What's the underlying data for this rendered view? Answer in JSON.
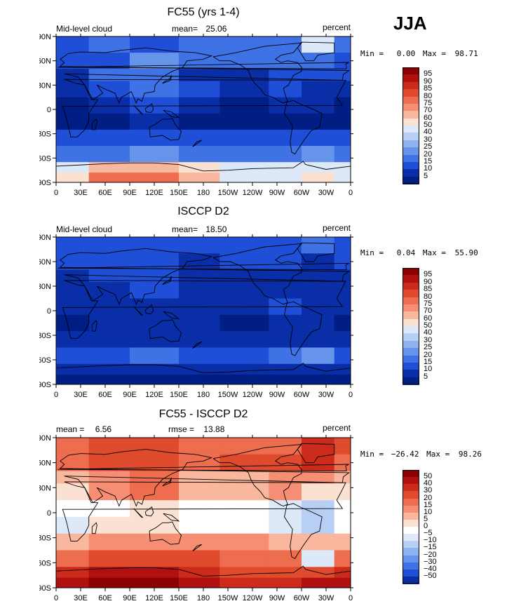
{
  "season": "JJA",
  "chart_data": [
    {
      "type": "heatmap",
      "title": "FC55 (yrs 1-4)",
      "variable": "Mid-level cloud",
      "stat1_label": "mean=",
      "stat1_value": "25.06",
      "units": "percent",
      "min_label": "Min =",
      "min_value": "0.00",
      "max_label": "Max =",
      "max_value": "98.71",
      "xticks": [
        "0",
        "30E",
        "60E",
        "90E",
        "120E",
        "150E",
        "180",
        "150W",
        "120W",
        "90W",
        "60W",
        "30W",
        "0"
      ],
      "yticks": [
        "90N",
        "60N",
        "30N",
        "0",
        "30S",
        "60S",
        "90S"
      ],
      "xlim": [
        0,
        360
      ],
      "ylim": [
        -90,
        90
      ],
      "levels": [
        "95",
        "90",
        "85",
        "80",
        "75",
        "70",
        "60",
        "50",
        "40",
        "30",
        "25",
        "20",
        "15",
        "10",
        "5"
      ],
      "colors": [
        "#8b0000",
        "#b01010",
        "#cc2a1a",
        "#e04b2e",
        "#ee6d4f",
        "#f58e72",
        "#f9b79d",
        "#fbe1d2",
        "#dde8f8",
        "#b7cef5",
        "#8fb2f0",
        "#6694eb",
        "#3f72e4",
        "#1f4fd6",
        "#0a2ea8",
        "#011e84"
      ],
      "field": {
        "lon_bands": [
          [
            0,
            40
          ],
          [
            40,
            90
          ],
          [
            90,
            150
          ],
          [
            150,
            200
          ],
          [
            200,
            260
          ],
          [
            260,
            300
          ],
          [
            300,
            340
          ],
          [
            340,
            360
          ]
        ],
        "rows": [
          {
            "lat": [
              90,
              70
            ],
            "vals": [
              2,
              3,
              2,
              3,
              3,
              3,
              7,
              3
            ]
          },
          {
            "lat": [
              70,
              50
            ],
            "vals": [
              2,
              2,
              4,
              3,
              3,
              3,
              3,
              2
            ]
          },
          {
            "lat": [
              50,
              35
            ],
            "vals": [
              1,
              3,
              3,
              1,
              1,
              2,
              2,
              2
            ]
          },
          {
            "lat": [
              35,
              15
            ],
            "vals": [
              1,
              2,
              3,
              2,
              1,
              2,
              1,
              1
            ]
          },
          {
            "lat": [
              15,
              -5
            ],
            "vals": [
              0,
              1,
              2,
              1,
              0,
              1,
              1,
              0
            ]
          },
          {
            "lat": [
              -5,
              -25
            ],
            "vals": [
              0,
              0,
              1,
              0,
              0,
              0,
              0,
              0
            ]
          },
          {
            "lat": [
              -25,
              -45
            ],
            "vals": [
              2,
              2,
              2,
              2,
              2,
              2,
              2,
              2
            ]
          },
          {
            "lat": [
              -45,
              -65
            ],
            "vals": [
              3,
              3,
              4,
              3,
              3,
              3,
              4,
              3
            ]
          },
          {
            "lat": [
              -65,
              -78
            ],
            "vals": [
              7,
              9,
              9,
              8,
              7,
              7,
              7,
              7
            ]
          },
          {
            "lat": [
              -78,
              -90
            ],
            "vals": [
              8,
              11,
              11,
              9,
              7,
              7,
              8,
              7
            ]
          }
        ]
      }
    },
    {
      "type": "heatmap",
      "title": "ISCCP D2",
      "variable": "Mid-level cloud",
      "stat1_label": "mean=",
      "stat1_value": "18.50",
      "units": "percent",
      "min_label": "Min =",
      "min_value": "0.04",
      "max_label": "Max =",
      "max_value": "55.90",
      "xticks": [
        "0",
        "30E",
        "60E",
        "90E",
        "120E",
        "150E",
        "180",
        "150W",
        "120W",
        "90W",
        "60W",
        "30W",
        "0"
      ],
      "yticks": [
        "90N",
        "60N",
        "30N",
        "0",
        "30S",
        "60S",
        "90S"
      ],
      "xlim": [
        0,
        360
      ],
      "ylim": [
        -90,
        90
      ],
      "levels": [
        "95",
        "90",
        "85",
        "80",
        "75",
        "70",
        "60",
        "50",
        "40",
        "30",
        "25",
        "20",
        "15",
        "10",
        "5"
      ],
      "colors": [
        "#8b0000",
        "#b01010",
        "#cc2a1a",
        "#e04b2e",
        "#ee6d4f",
        "#f58e72",
        "#f9b79d",
        "#fbe1d2",
        "#dde8f8",
        "#b7cef5",
        "#8fb2f0",
        "#6694eb",
        "#3f72e4",
        "#1f4fd6",
        "#0a2ea8",
        "#011e84"
      ],
      "field": {
        "lon_bands": [
          [
            0,
            40
          ],
          [
            40,
            90
          ],
          [
            90,
            150
          ],
          [
            150,
            200
          ],
          [
            200,
            260
          ],
          [
            260,
            300
          ],
          [
            300,
            340
          ],
          [
            340,
            360
          ]
        ],
        "rows": [
          {
            "lat": [
              90,
              70
            ],
            "vals": [
              2,
              2,
              2,
              2,
              2,
              2,
              3,
              2
            ]
          },
          {
            "lat": [
              70,
              50
            ],
            "vals": [
              2,
              2,
              2,
              1,
              2,
              2,
              1,
              2
            ]
          },
          {
            "lat": [
              50,
              35
            ],
            "vals": [
              1,
              2,
              2,
              1,
              1,
              1,
              1,
              1
            ]
          },
          {
            "lat": [
              35,
              15
            ],
            "vals": [
              1,
              1,
              2,
              1,
              1,
              1,
              1,
              1
            ]
          },
          {
            "lat": [
              15,
              -5
            ],
            "vals": [
              1,
              1,
              1,
              1,
              1,
              2,
              1,
              1
            ]
          },
          {
            "lat": [
              -5,
              -25
            ],
            "vals": [
              0,
              1,
              1,
              1,
              0,
              1,
              1,
              0
            ]
          },
          {
            "lat": [
              -25,
              -45
            ],
            "vals": [
              1,
              1,
              1,
              1,
              1,
              1,
              1,
              1
            ]
          },
          {
            "lat": [
              -45,
              -65
            ],
            "vals": [
              2,
              2,
              3,
              2,
              2,
              3,
              4,
              2
            ]
          },
          {
            "lat": [
              -65,
              -78
            ],
            "vals": [
              1,
              1,
              1,
              1,
              1,
              1,
              1,
              1
            ]
          },
          {
            "lat": [
              -78,
              -90
            ],
            "vals": [
              0,
              0,
              0,
              0,
              0,
              0,
              0,
              0
            ]
          }
        ]
      }
    },
    {
      "type": "heatmap",
      "title": "FC55 - ISCCP D2",
      "variable": "",
      "stat1_label": "mean =",
      "stat1_value": "6.56",
      "stat2_label": "rmse =",
      "stat2_value": "13.88",
      "units": "percent",
      "min_label": "Min =",
      "min_value": "−26.42",
      "max_label": "Max =",
      "max_value": "98.26",
      "xticks": [
        "0",
        "30E",
        "60E",
        "90E",
        "120E",
        "150E",
        "180",
        "150W",
        "120W",
        "90W",
        "60W",
        "30W",
        "0"
      ],
      "yticks": [
        "90N",
        "60N",
        "30N",
        "0",
        "30S",
        "60S",
        "90S"
      ],
      "xlim": [
        0,
        360
      ],
      "ylim": [
        -90,
        90
      ],
      "levels": [
        "50",
        "40",
        "30",
        "20",
        "15",
        "10",
        "5",
        "0",
        "−5",
        "−10",
        "−15",
        "−20",
        "−30",
        "−40",
        "−50"
      ],
      "colors": [
        "#8b0000",
        "#b01010",
        "#cc2a1a",
        "#e04b2e",
        "#ee6d4f",
        "#f58e72",
        "#f9b79d",
        "#fbe1d2",
        "#ffffff",
        "#dde8f8",
        "#b7cef5",
        "#8fb2f0",
        "#6694eb",
        "#3f72e4",
        "#1f4fd6",
        "#0a2ea8"
      ],
      "field": {
        "lon_bands": [
          [
            0,
            40
          ],
          [
            40,
            90
          ],
          [
            90,
            150
          ],
          [
            150,
            200
          ],
          [
            200,
            260
          ],
          [
            260,
            300
          ],
          [
            300,
            340
          ],
          [
            340,
            360
          ]
        ],
        "rows": [
          {
            "lat": [
              90,
              70
            ],
            "vals": [
              11,
              12,
              12,
              11,
              11,
              11,
              13,
              12
            ]
          },
          {
            "lat": [
              70,
              50
            ],
            "vals": [
              11,
              12,
              12,
              11,
              12,
              12,
              13,
              11
            ]
          },
          {
            "lat": [
              50,
              35
            ],
            "vals": [
              9,
              10,
              11,
              9,
              9,
              10,
              10,
              9
            ]
          },
          {
            "lat": [
              35,
              15
            ],
            "vals": [
              8,
              10,
              11,
              9,
              9,
              10,
              8,
              8
            ]
          },
          {
            "lat": [
              15,
              -5
            ],
            "vals": [
              7,
              7,
              8,
              7,
              7,
              6,
              5,
              7
            ]
          },
          {
            "lat": [
              -5,
              -25
            ],
            "vals": [
              6,
              8,
              8,
              7,
              7,
              6,
              5,
              7
            ]
          },
          {
            "lat": [
              -25,
              -45
            ],
            "vals": [
              9,
              10,
              10,
              10,
              10,
              9,
              9,
              9
            ]
          },
          {
            "lat": [
              -45,
              -65
            ],
            "vals": [
              11,
              12,
              12,
              12,
              11,
              11,
              6,
              11
            ]
          },
          {
            "lat": [
              -65,
              -78
            ],
            "vals": [
              13,
              14,
              14,
              13,
              12,
              12,
              12,
              13
            ]
          },
          {
            "lat": [
              -78,
              -90
            ],
            "vals": [
              14,
              15,
              15,
              14,
              13,
              13,
              14,
              14
            ]
          }
        ]
      }
    }
  ]
}
